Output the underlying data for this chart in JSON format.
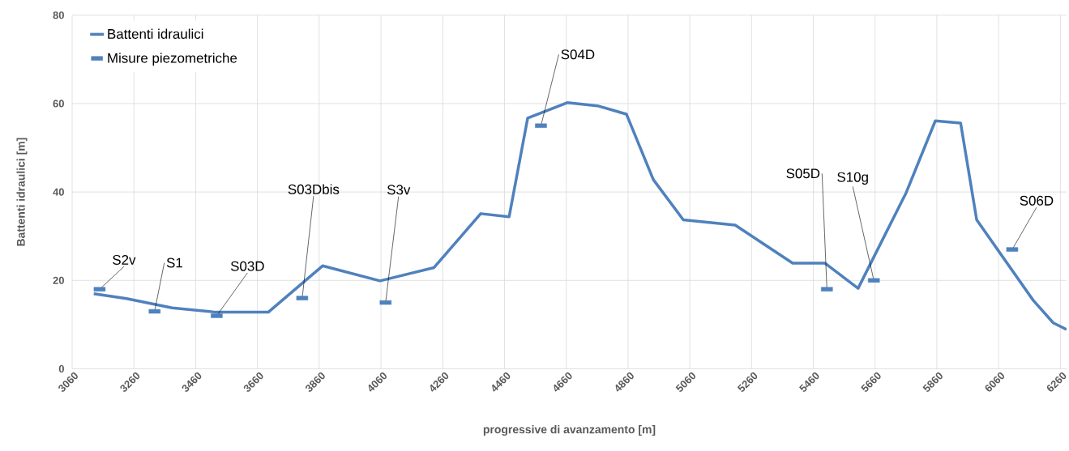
{
  "chart_data": {
    "type": "line",
    "xlabel": "progressive di avanzamento [m]",
    "ylabel": "Battenti idraulici [m]",
    "xlim": [
      3060,
      6280
    ],
    "ylim": [
      0,
      80
    ],
    "xticks": [
      3060,
      3260,
      3460,
      3660,
      3860,
      4060,
      4260,
      4460,
      4660,
      4860,
      5060,
      5260,
      5460,
      5660,
      5860,
      6060,
      6260
    ],
    "yticks": [
      0,
      20,
      40,
      60,
      80
    ],
    "grid": true,
    "legend": "top left",
    "series": [
      {
        "name": "Battenti idraulici",
        "color": "#4f81bd",
        "marker": "none",
        "line_style": "solid",
        "x": [
          3130,
          3236,
          3384,
          3526,
          3695,
          3871,
          4057,
          4232,
          4383,
          4475,
          4535,
          4663,
          4761,
          4855,
          4942,
          5039,
          5207,
          5393,
          5498,
          5605,
          5761,
          5855,
          5937,
          5989,
          6172,
          6237,
          6280
        ],
        "values": [
          17,
          15.9,
          13.8,
          12.8,
          12.8,
          23.3,
          19.9,
          22.9,
          35.1,
          34.4,
          56.7,
          60.2,
          59.5,
          57.6,
          42.8,
          33.7,
          32.5,
          23.9,
          23.9,
          18.2,
          39.9,
          56.1,
          55.6,
          33.7,
          15.5,
          10.4,
          8.9
        ]
      },
      {
        "name": "Misure piezometriche",
        "type": "scatter",
        "color": "#4f81bd",
        "marker": "square",
        "x": [
          3149,
          3327,
          3528,
          3805,
          4075,
          4578,
          5504,
          5656,
          6104
        ],
        "values": [
          18,
          13,
          12,
          16,
          15,
          55,
          18,
          20,
          27
        ]
      }
    ],
    "annotations": [
      {
        "text": "S2v",
        "x": 3149,
        "y": 18
      },
      {
        "text": "S1",
        "x": 3327,
        "y": 13
      },
      {
        "text": "S03D",
        "x": 3528,
        "y": 12
      },
      {
        "text": "S03Dbis",
        "x": 3805,
        "y": 16
      },
      {
        "text": "S3v",
        "x": 4075,
        "y": 15
      },
      {
        "text": "S04D",
        "x": 4578,
        "y": 55
      },
      {
        "text": "S05D",
        "x": 5504,
        "y": 18
      },
      {
        "text": "S10g",
        "x": 5656,
        "y": 20
      },
      {
        "text": "S06D",
        "x": 6104,
        "y": 27
      }
    ]
  }
}
